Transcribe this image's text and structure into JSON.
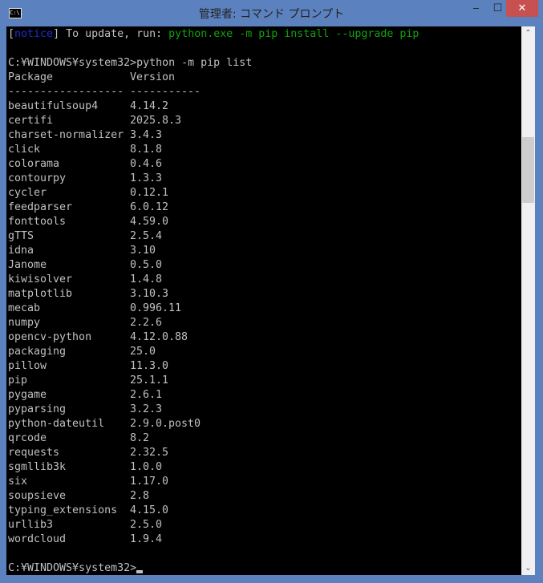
{
  "window": {
    "title": "管理者: コマンド プロンプト",
    "icon_label": "C:\\.",
    "minimize_label": "‒",
    "maximize_label": "☐",
    "close_label": "✕",
    "colors": {
      "frame": "#5b81bf",
      "close": "#c75050",
      "background": "#000000",
      "text": "#c0c0c0",
      "notice": "#1f2bd1",
      "command": "#13a10e"
    }
  },
  "console": {
    "notice": {
      "open": "[",
      "tag": "notice",
      "close": "]",
      "text": " To update, run: ",
      "command": "python.exe -m pip install --upgrade pip"
    },
    "prompt_command": "C:¥WINDOWS¥system32>python -m pip list",
    "header": {
      "package": "Package",
      "version": "Version"
    },
    "separator": {
      "package": "------------------",
      "version": "-----------"
    },
    "packages": [
      [
        "beautifulsoup4",
        "4.14.2"
      ],
      [
        "certifi",
        "2025.8.3"
      ],
      [
        "charset-normalizer",
        "3.4.3"
      ],
      [
        "click",
        "8.1.8"
      ],
      [
        "colorama",
        "0.4.6"
      ],
      [
        "contourpy",
        "1.3.3"
      ],
      [
        "cycler",
        "0.12.1"
      ],
      [
        "feedparser",
        "6.0.12"
      ],
      [
        "fonttools",
        "4.59.0"
      ],
      [
        "gTTS",
        "2.5.4"
      ],
      [
        "idna",
        "3.10"
      ],
      [
        "Janome",
        "0.5.0"
      ],
      [
        "kiwisolver",
        "1.4.8"
      ],
      [
        "matplotlib",
        "3.10.3"
      ],
      [
        "mecab",
        "0.996.11"
      ],
      [
        "numpy",
        "2.2.6"
      ],
      [
        "opencv-python",
        "4.12.0.88"
      ],
      [
        "packaging",
        "25.0"
      ],
      [
        "pillow",
        "11.3.0"
      ],
      [
        "pip",
        "25.1.1"
      ],
      [
        "pygame",
        "2.6.1"
      ],
      [
        "pyparsing",
        "3.2.3"
      ],
      [
        "python-dateutil",
        "2.9.0.post0"
      ],
      [
        "qrcode",
        "8.2"
      ],
      [
        "requests",
        "2.32.5"
      ],
      [
        "sgmllib3k",
        "1.0.0"
      ],
      [
        "six",
        "1.17.0"
      ],
      [
        "soupsieve",
        "2.8"
      ],
      [
        "typing_extensions",
        "4.15.0"
      ],
      [
        "urllib3",
        "2.5.0"
      ],
      [
        "wordcloud",
        "1.9.4"
      ]
    ],
    "final_prompt": "C:¥WINDOWS¥system32>"
  },
  "scrollbar": {
    "up_icon": "chevron-up-icon",
    "down_icon": "chevron-down-icon",
    "up_glyph": "⌃",
    "down_glyph": "⌄"
  }
}
